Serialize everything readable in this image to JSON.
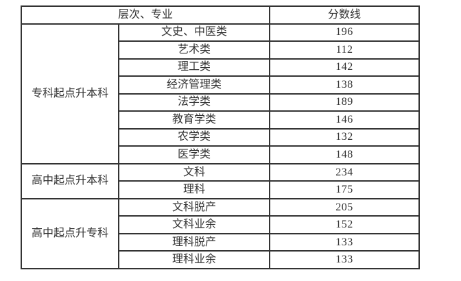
{
  "colors": {
    "border": "#333333",
    "text": "#333333",
    "background": "#ffffff"
  },
  "table": {
    "header": {
      "level_major": "层次、专业",
      "score_line": "分数线"
    },
    "sections": [
      {
        "group": "专科起点升本科",
        "rows": [
          {
            "major": "文史、中医类",
            "score": "196"
          },
          {
            "major": "艺术类",
            "score": "112"
          },
          {
            "major": "理工类",
            "score": "142"
          },
          {
            "major": "经济管理类",
            "score": "138"
          },
          {
            "major": "法学类",
            "score": "189"
          },
          {
            "major": "教育学类",
            "score": "146"
          },
          {
            "major": "农学类",
            "score": "132"
          },
          {
            "major": "医学类",
            "score": "148"
          }
        ]
      },
      {
        "group": "高中起点升本科",
        "rows": [
          {
            "major": "文科",
            "score": "234"
          },
          {
            "major": "理科",
            "score": "175"
          }
        ]
      },
      {
        "group": "高中起点升专科",
        "rows": [
          {
            "major": "文科脱产",
            "score": "205"
          },
          {
            "major": "文科业余",
            "score": "152"
          },
          {
            "major": "理科脱产",
            "score": "133"
          },
          {
            "major": "理科业余",
            "score": "133"
          }
        ]
      }
    ]
  }
}
